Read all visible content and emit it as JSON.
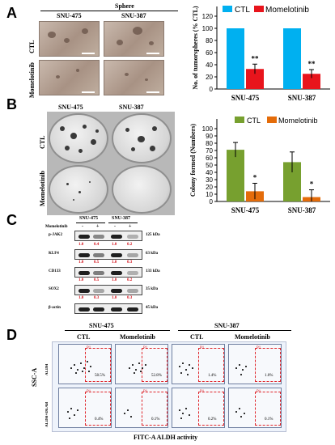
{
  "panels": [
    "A",
    "B",
    "C",
    "D"
  ],
  "panel_a": {
    "header": "Sphere",
    "cell_lines": [
      "SNU-475",
      "SNU-387"
    ],
    "row_labels": [
      "CTL",
      "Momelotinib"
    ]
  },
  "panel_b": {
    "cell_lines": [
      "SNU-475",
      "SNU-387"
    ],
    "row_labels": [
      "CTL",
      "Momelotinib"
    ]
  },
  "panel_c": {
    "cell_lines": [
      "SNU-475",
      "SNU-387"
    ],
    "treatment_label": "Momelotinib",
    "signs": [
      "-",
      "+",
      "-",
      "+"
    ],
    "rows": [
      {
        "protein": "p-JAK2",
        "kda": "125 kDa",
        "ratios": [
          "1.0",
          "0.4",
          "1.0",
          "0.2"
        ]
      },
      {
        "protein": "KLF4",
        "kda": "63 kDa",
        "ratios": [
          "1.0",
          "0.5",
          "1.0",
          "0.3"
        ]
      },
      {
        "protein": "CD133",
        "kda": "133 kDa",
        "ratios": [
          "1.0",
          "0.5",
          "1.0",
          "0.2"
        ]
      },
      {
        "protein": "SOX2",
        "kda": "35 kDa",
        "ratios": [
          "1.0",
          "0.3",
          "1.0",
          "0.3"
        ]
      },
      {
        "protein": "β-actin",
        "kda": "45 kDa",
        "ratios": []
      }
    ]
  },
  "panel_d": {
    "cell_lines": [
      "SNU-475",
      "SNU-387"
    ],
    "column_labels": [
      "CTL",
      "Momelotinib",
      "CTL",
      "Momelotinib"
    ],
    "row_labels": [
      "ALDH",
      "ALDH+DEAB"
    ],
    "y_axis": "SSC-A",
    "x_axis": "FITC-A  ALDH activity",
    "gate_label": "P1",
    "percentages": [
      [
        "58.5%",
        "52.8%",
        "1.4%",
        "1.0%"
      ],
      [
        "0.4%",
        "0.1%",
        "0.2%",
        "0.1%"
      ]
    ]
  },
  "colors": {
    "ctl": "#00b0f0",
    "momelotinib": "#e8141c",
    "ctl_green": "#77a02f",
    "momelotinib_orange": "#e46c0a"
  },
  "chart_data": [
    {
      "type": "bar",
      "categories": [
        "SNU-475",
        "SNU-387"
      ],
      "series": [
        {
          "name": "CTL",
          "values": [
            100,
            100
          ],
          "errors": [
            0,
            0
          ]
        },
        {
          "name": "Momelotinib",
          "values": [
            33,
            25
          ],
          "errors": [
            8,
            7
          ]
        }
      ],
      "significance": [
        "**",
        "**"
      ],
      "ylabel": "No. of tumorspheres (% CTL)",
      "ylim": [
        0,
        120
      ],
      "yticks": [
        "0",
        "20",
        "40",
        "60",
        "80",
        "100",
        "120"
      ],
      "legend": "top"
    },
    {
      "type": "bar",
      "categories": [
        "SNU-475",
        "SNU-387"
      ],
      "series": [
        {
          "name": "CTL",
          "values": [
            71,
            54
          ],
          "errors": [
            10,
            14
          ]
        },
        {
          "name": "Momelotinib",
          "values": [
            14,
            6
          ],
          "errors": [
            11,
            10
          ]
        }
      ],
      "significance": [
        "*",
        "*"
      ],
      "ylabel": "Colony formed (Numbers)",
      "ylim": [
        0,
        100
      ],
      "yticks": [
        "0",
        "10",
        "20",
        "30",
        "40",
        "50",
        "60",
        "70",
        "80",
        "90",
        "100"
      ],
      "legend": "top"
    }
  ]
}
